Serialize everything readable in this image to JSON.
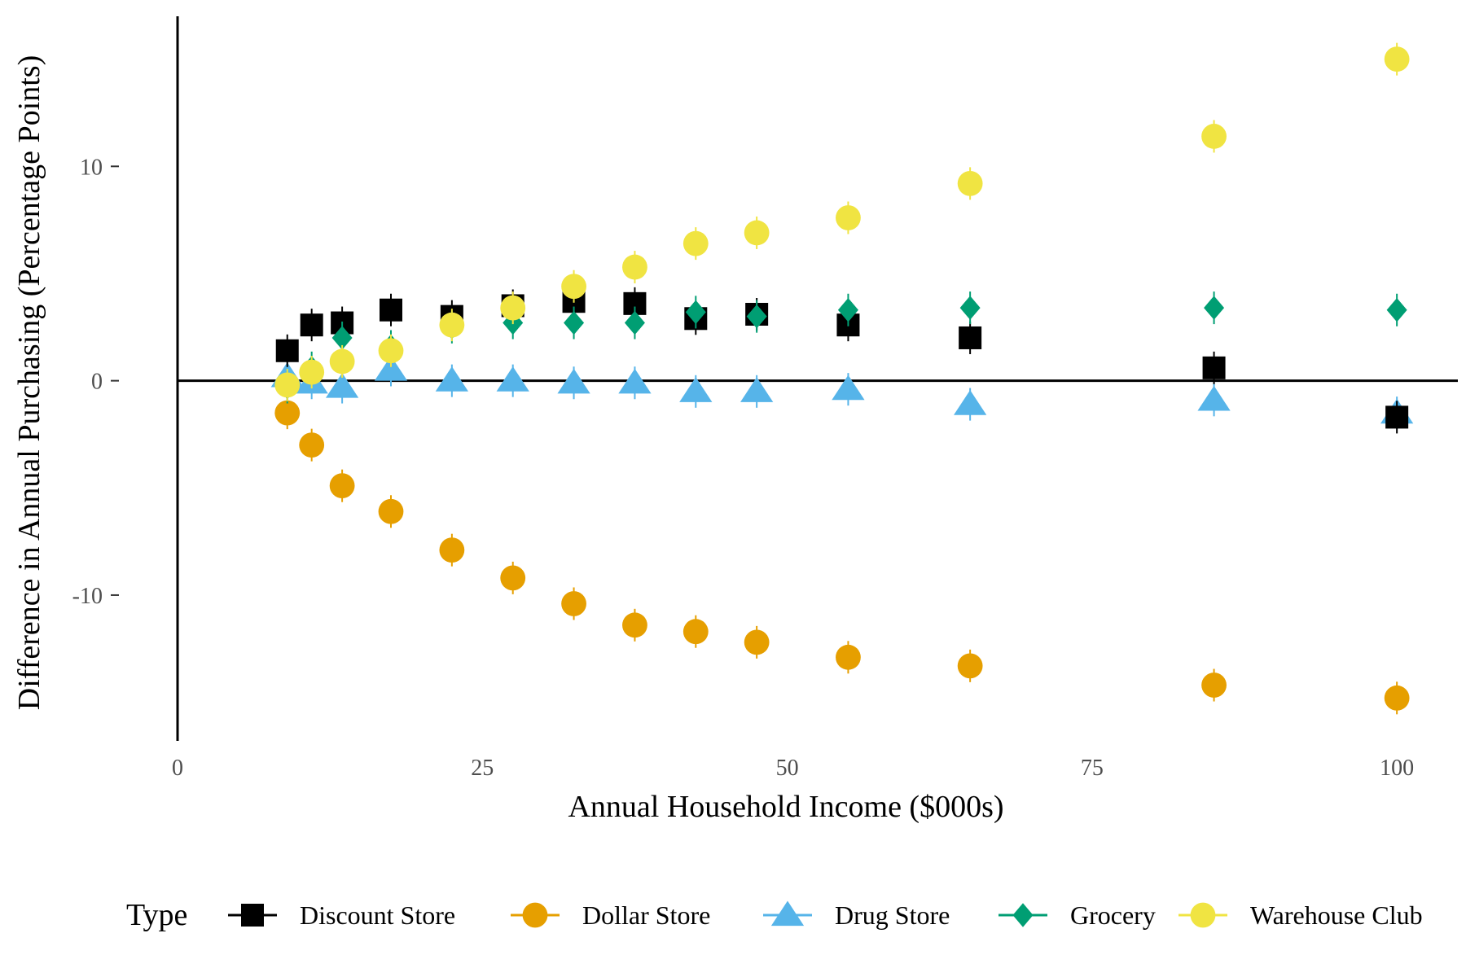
{
  "chart_data": {
    "type": "scatter",
    "title": "",
    "xlabel": "Annual Household Income ($000s)",
    "ylabel": "Difference in Annual Purchasing (Percentage Points)",
    "xlim": [
      0,
      105
    ],
    "ylim": [
      -16.8,
      17
    ],
    "x_ticks": [
      {
        "value": 0,
        "label": "0"
      },
      {
        "value": 25,
        "label": "25"
      },
      {
        "value": 50,
        "label": "50"
      },
      {
        "value": 75,
        "label": "75"
      },
      {
        "value": 100,
        "label": "100"
      }
    ],
    "y_ticks": [
      {
        "value": -10,
        "label": "-10"
      },
      {
        "value": 0,
        "label": "0"
      },
      {
        "value": 10,
        "label": "10"
      }
    ],
    "x": [
      9,
      11,
      13.5,
      17.5,
      22.5,
      27.5,
      32.5,
      37.5,
      42.5,
      47.5,
      55,
      65,
      85,
      100
    ],
    "grid": false,
    "legend": {
      "title": "Type",
      "position": "bottom"
    },
    "series": [
      {
        "name": "Discount Store",
        "marker": "square",
        "color": "#000000",
        "values": [
          1.4,
          2.6,
          2.7,
          3.3,
          3.0,
          3.5,
          3.7,
          3.6,
          2.9,
          3.1,
          2.6,
          2.0,
          0.6,
          -1.7
        ]
      },
      {
        "name": "Dollar Store",
        "marker": "circle",
        "color": "#E69F00",
        "values": [
          -1.5,
          -3.0,
          -4.9,
          -6.1,
          -7.9,
          -9.2,
          -10.4,
          -11.4,
          -11.7,
          -12.2,
          -12.9,
          -13.3,
          -14.2,
          -14.8
        ]
      },
      {
        "name": "Drug Store",
        "marker": "triangle",
        "color": "#56B4E9",
        "values": [
          0.2,
          -0.1,
          -0.3,
          0.5,
          0.0,
          0.0,
          -0.1,
          -0.1,
          -0.5,
          -0.5,
          -0.4,
          -1.1,
          -0.9,
          -1.5
        ]
      },
      {
        "name": "Grocery",
        "marker": "diamond",
        "color": "#009E73",
        "values": [
          -0.3,
          0.6,
          2.0,
          1.6,
          2.5,
          2.7,
          2.7,
          2.7,
          3.2,
          3.0,
          3.3,
          3.4,
          3.4,
          3.3
        ]
      },
      {
        "name": "Warehouse Club",
        "marker": "circle",
        "color": "#F0E442",
        "values": [
          -0.2,
          0.4,
          0.9,
          1.4,
          2.6,
          3.4,
          4.4,
          5.3,
          6.4,
          6.9,
          7.6,
          9.2,
          11.4,
          15.0
        ]
      }
    ]
  }
}
